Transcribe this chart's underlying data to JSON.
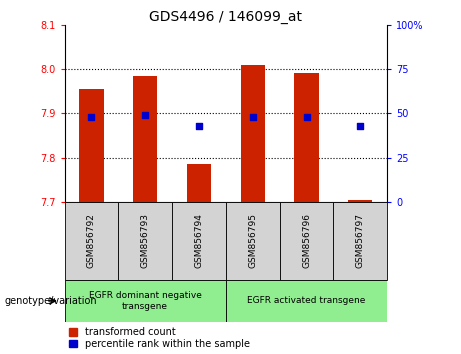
{
  "title": "GDS4496 / 146099_at",
  "categories": [
    "GSM856792",
    "GSM856793",
    "GSM856794",
    "GSM856795",
    "GSM856796",
    "GSM856797"
  ],
  "bar_values": [
    7.955,
    7.985,
    7.785,
    8.01,
    7.99,
    7.705
  ],
  "bar_bottom": 7.7,
  "percentile_values": [
    48,
    49,
    43,
    48,
    48,
    43
  ],
  "ylim_left": [
    7.7,
    8.1
  ],
  "ylim_right": [
    0,
    100
  ],
  "yticks_left": [
    7.7,
    7.8,
    7.9,
    8.0,
    8.1
  ],
  "yticks_right": [
    0,
    25,
    50,
    75,
    100
  ],
  "ytick_right_labels": [
    "0",
    "25",
    "50",
    "75",
    "100%"
  ],
  "bar_color": "#cc2200",
  "dot_color": "#0000cc",
  "group1_label": "EGFR dominant negative\ntransgene",
  "group2_label": "EGFR activated transgene",
  "group1_indices": [
    0,
    1,
    2
  ],
  "group2_indices": [
    3,
    4,
    5
  ],
  "group_bg_color": "#90ee90",
  "sample_bg_color": "#d3d3d3",
  "legend_red_label": "transformed count",
  "legend_blue_label": "percentile rank within the sample",
  "genotype_label": "genotype/variation"
}
